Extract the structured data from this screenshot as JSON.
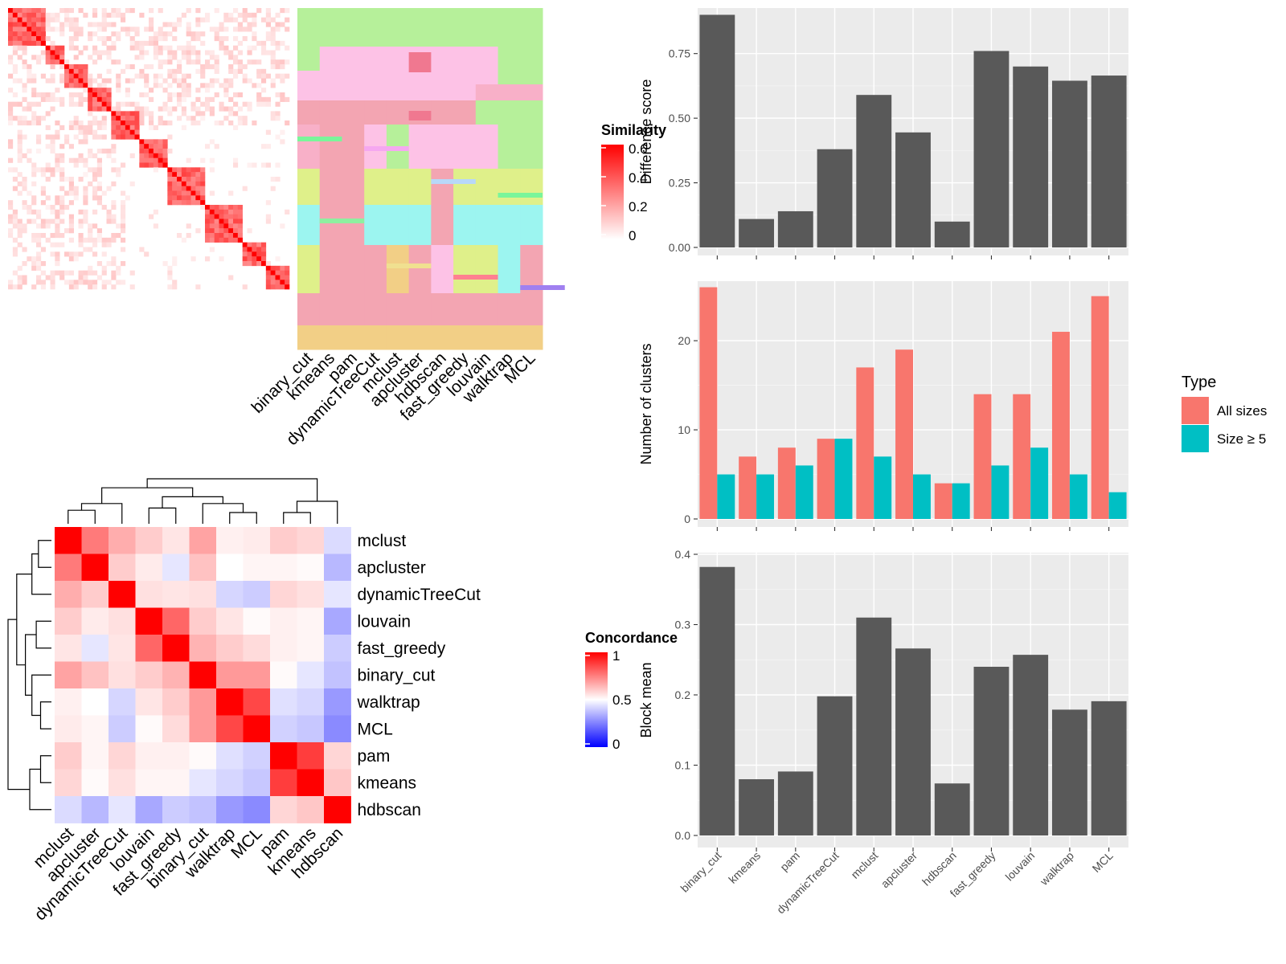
{
  "methods": [
    "binary_cut",
    "kmeans",
    "pam",
    "dynamicTreeCut",
    "mclust",
    "apcluster",
    "hdbscan",
    "fast_greedy",
    "louvain",
    "walktrap",
    "MCL"
  ],
  "colors": {
    "bar_fill": "#595959",
    "panel_bg": "#ebebeb",
    "all_sizes": "#f8766d",
    "size_ge5": "#00bfc4",
    "heat_low": "#0000ff",
    "heat_mid": "#ffffff",
    "heat_high": "#ff0000"
  },
  "similarity_heatmap": {
    "legend_title": "Similarity",
    "legend_ticks": [
      "0.6",
      "0.4",
      "0.2",
      "0"
    ]
  },
  "partition_heatmap": {
    "columns": [
      "binary_cut",
      "kmeans",
      "pam",
      "dynamicTreeCut",
      "mclust",
      "apcluster",
      "hdbscan",
      "fast_greedy",
      "louvain",
      "walktrap",
      "MCL"
    ]
  },
  "concordance_heatmap": {
    "legend_title": "Concordance",
    "legend_ticks": [
      "1",
      "0.5",
      "0"
    ],
    "order": [
      "mclust",
      "apcluster",
      "dynamicTreeCut",
      "louvain",
      "fast_greedy",
      "binary_cut",
      "walktrap",
      "MCL",
      "pam",
      "kmeans",
      "hdbscan"
    ]
  },
  "chart_data": [
    {
      "type": "bar",
      "categories": [
        "binary_cut",
        "kmeans",
        "pam",
        "dynamicTreeCut",
        "mclust",
        "apcluster",
        "hdbscan",
        "fast_greedy",
        "louvain",
        "walktrap",
        "MCL"
      ],
      "values": [
        0.9,
        0.11,
        0.14,
        0.38,
        0.59,
        0.445,
        0.1,
        0.76,
        0.7,
        0.645,
        0.665
      ],
      "ylabel": "Difference score",
      "ylim": [
        0,
        0.92
      ],
      "yticks": [
        "0.00",
        "0.25",
        "0.50",
        "0.75"
      ],
      "grid": true
    },
    {
      "type": "bar",
      "categories": [
        "binary_cut",
        "kmeans",
        "pam",
        "dynamicTreeCut",
        "mclust",
        "apcluster",
        "hdbscan",
        "fast_greedy",
        "louvain",
        "walktrap",
        "MCL"
      ],
      "series": [
        {
          "name": "All sizes",
          "values": [
            26,
            7,
            8,
            9,
            17,
            19,
            4,
            14,
            14,
            21,
            25
          ]
        },
        {
          "name": "Size ≥ 5",
          "values": [
            5,
            5,
            6,
            9,
            7,
            5,
            4,
            6,
            8,
            5,
            3
          ]
        }
      ],
      "ylabel": "Number of clusters",
      "ylim": [
        0,
        26.5
      ],
      "yticks": [
        "0",
        "10",
        "20"
      ],
      "legend_title": "Type",
      "legend_position": "right",
      "grid": true
    },
    {
      "type": "bar",
      "categories": [
        "binary_cut",
        "kmeans",
        "pam",
        "dynamicTreeCut",
        "mclust",
        "apcluster",
        "hdbscan",
        "fast_greedy",
        "louvain",
        "walktrap",
        "MCL"
      ],
      "values": [
        0.382,
        0.08,
        0.091,
        0.198,
        0.31,
        0.266,
        0.074,
        0.24,
        0.257,
        0.179,
        0.191
      ],
      "ylabel": "Block mean",
      "ylim": [
        0,
        0.4
      ],
      "yticks": [
        "0.0",
        "0.1",
        "0.2",
        "0.3",
        "0.4"
      ],
      "grid": true
    },
    {
      "type": "heatmap",
      "rows": [
        "mclust",
        "apcluster",
        "dynamicTreeCut",
        "louvain",
        "fast_greedy",
        "binary_cut",
        "walktrap",
        "MCL",
        "pam",
        "kmeans",
        "hdbscan"
      ],
      "columns": [
        "mclust",
        "apcluster",
        "dynamicTreeCut",
        "louvain",
        "fast_greedy",
        "binary_cut",
        "walktrap",
        "MCL",
        "pam",
        "kmeans",
        "hdbscan"
      ],
      "values": [
        [
          1.0,
          0.76,
          0.66,
          0.6,
          0.55,
          0.68,
          0.53,
          0.54,
          0.6,
          0.58,
          0.43
        ],
        [
          0.76,
          1.0,
          0.6,
          0.54,
          0.45,
          0.62,
          0.5,
          0.52,
          0.52,
          0.51,
          0.36
        ],
        [
          0.66,
          0.6,
          1.0,
          0.56,
          0.55,
          0.56,
          0.42,
          0.4,
          0.58,
          0.56,
          0.45
        ],
        [
          0.6,
          0.54,
          0.56,
          1.0,
          0.8,
          0.6,
          0.55,
          0.51,
          0.53,
          0.52,
          0.33
        ],
        [
          0.55,
          0.45,
          0.55,
          0.8,
          1.0,
          0.65,
          0.6,
          0.57,
          0.53,
          0.52,
          0.4
        ],
        [
          0.68,
          0.62,
          0.56,
          0.6,
          0.65,
          1.0,
          0.7,
          0.7,
          0.51,
          0.45,
          0.38
        ],
        [
          0.53,
          0.5,
          0.42,
          0.55,
          0.6,
          0.7,
          1.0,
          0.86,
          0.44,
          0.42,
          0.3
        ],
        [
          0.54,
          0.52,
          0.4,
          0.51,
          0.57,
          0.7,
          0.86,
          1.0,
          0.41,
          0.39,
          0.27
        ],
        [
          0.6,
          0.52,
          0.58,
          0.53,
          0.53,
          0.51,
          0.44,
          0.41,
          1.0,
          0.88,
          0.58
        ],
        [
          0.58,
          0.51,
          0.56,
          0.52,
          0.52,
          0.45,
          0.42,
          0.39,
          0.88,
          1.0,
          0.61
        ],
        [
          0.43,
          0.36,
          0.45,
          0.33,
          0.4,
          0.38,
          0.3,
          0.27,
          0.58,
          0.61,
          1.0
        ]
      ],
      "legend_title": "Concordance",
      "range": [
        0,
        1
      ]
    }
  ]
}
